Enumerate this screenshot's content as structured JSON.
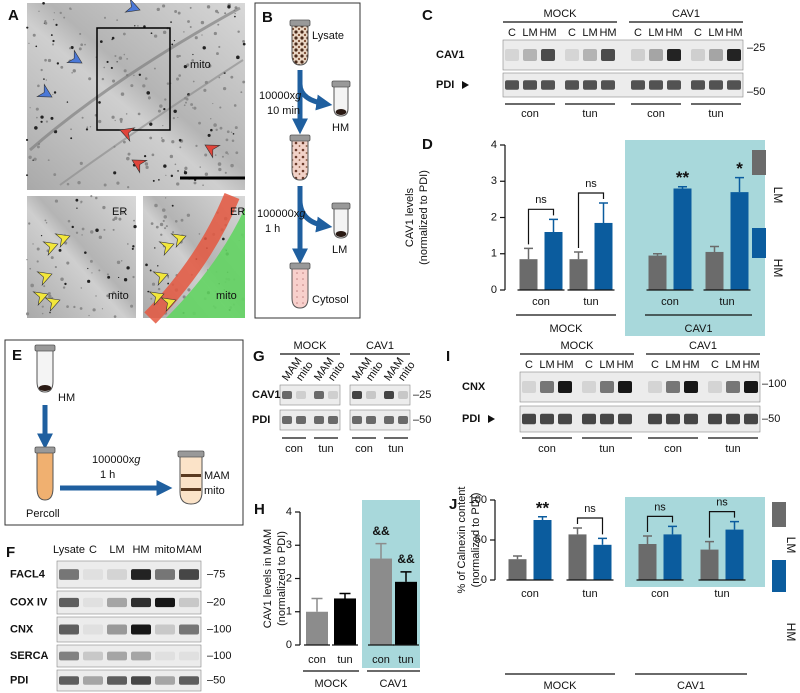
{
  "figure": {
    "a": {
      "label": "A",
      "labels": [
        "mito",
        "ER",
        "mito",
        "ER",
        "mito"
      ]
    },
    "b": {
      "label": "B",
      "tubes": [
        "Lysate",
        "HM",
        "LM",
        "Cytosol"
      ],
      "spins": [
        {
          "speed": "10000x",
          "g": "g",
          "time": "10 min"
        },
        {
          "speed": "100000x",
          "g": "g",
          "time": "1 h"
        }
      ]
    },
    "c": {
      "label": "C",
      "groups": [
        "MOCK",
        "CAV1"
      ],
      "lanes": [
        "C",
        "LM",
        "HM"
      ],
      "rows": [
        "CAV1",
        "PDI"
      ],
      "markers": [
        "–25",
        "–50"
      ],
      "conditions": [
        "con",
        "tun"
      ]
    },
    "e": {
      "label": "E",
      "tubes": [
        "HM",
        "Percoll",
        "MAM",
        "mito"
      ],
      "spin": {
        "speed": "100000x",
        "g": "g",
        "time": "1 h"
      }
    },
    "f": {
      "label": "F",
      "lanes": [
        "Lysate",
        "C",
        "LM",
        "HM",
        "mito",
        "MAM"
      ],
      "rows": [
        "FACL4",
        "COX IV",
        "CNX",
        "SERCA",
        "PDI"
      ],
      "markers": [
        "–75",
        "–20",
        "–100",
        "–100",
        "–50"
      ]
    },
    "g": {
      "label": "G",
      "groups": [
        "MOCK",
        "CAV1"
      ],
      "lanes": [
        "MAM",
        "mito"
      ],
      "rows": [
        "CAV1",
        "PDI"
      ],
      "markers": [
        "–25",
        "–50"
      ],
      "conditions": [
        "con",
        "tun"
      ]
    },
    "i": {
      "label": "I",
      "groups": [
        "MOCK",
        "CAV1"
      ],
      "lanes": [
        "C",
        "LM",
        "HM"
      ],
      "rows": [
        "CNX",
        "PDI"
      ],
      "markers": [
        "–100",
        "–50"
      ],
      "conditions": [
        "con",
        "tun"
      ]
    }
  },
  "chart_data": [
    {
      "label": "D",
      "type": "bar",
      "y_label": [
        "CAV1 levels",
        "(normalized to PDI)"
      ],
      "categories": [
        "con",
        "tun",
        "con",
        "tun"
      ],
      "groups": [
        "MOCK",
        "CAV1"
      ],
      "series": [
        {
          "name": "LM",
          "color": "#6b6b6b",
          "values": [
            0.85,
            0.85,
            0.95,
            1.05
          ],
          "errors": [
            0.3,
            0.2,
            0.05,
            0.15
          ]
        },
        {
          "name": "HM",
          "color": "#0b5c9e",
          "values": [
            1.6,
            1.85,
            2.8,
            2.7
          ],
          "errors": [
            0.35,
            0.55,
            0.05,
            0.4
          ]
        }
      ],
      "annotations": [
        {
          "text": "ns",
          "bracket": true
        },
        {
          "text": "ns",
          "bracket": true
        },
        {
          "text": "**",
          "bracket": false
        },
        {
          "text": "*",
          "bracket": false
        }
      ],
      "ylim": [
        0,
        4
      ],
      "yticks": [
        0,
        1,
        2,
        3,
        4
      ],
      "legend": "right",
      "highlight_group": 1,
      "highlight_color": "#a8d8db"
    },
    {
      "label": "H",
      "type": "bar",
      "y_label": [
        "CAV1 levels in MAM",
        "(normalized to PDI)"
      ],
      "categories": [
        "con",
        "tun",
        "con",
        "tun"
      ],
      "groups": [
        "MOCK",
        "CAV1"
      ],
      "values": [
        1.0,
        1.4,
        2.6,
        1.9
      ],
      "errors": [
        0.4,
        0.15,
        0.45,
        0.3
      ],
      "colors": [
        "#8c8c8c",
        "#000000",
        "#8c8c8c",
        "#000000"
      ],
      "annotations": [
        null,
        null,
        "&&",
        "&&"
      ],
      "ylim": [
        0,
        4
      ],
      "yticks": [
        0,
        1,
        2,
        3,
        4
      ],
      "highlight_group": 1,
      "highlight_color": "#a8d8db"
    },
    {
      "label": "J",
      "type": "bar",
      "y_label": [
        "% of Calnexin content",
        "(normalized to PDI)"
      ],
      "categories": [
        "con",
        "tun",
        "con",
        "tun"
      ],
      "groups": [
        "MOCK",
        "CAV1"
      ],
      "series": [
        {
          "name": "LM",
          "color": "#6b6b6b",
          "values": [
            26,
            57,
            45,
            38
          ],
          "errors": [
            4,
            8,
            10,
            10
          ]
        },
        {
          "name": "HM",
          "color": "#0b5c9e",
          "values": [
            75,
            44,
            57,
            63
          ],
          "errors": [
            4,
            8,
            10,
            10
          ]
        }
      ],
      "annotations": [
        {
          "text": "**",
          "bracket": false
        },
        {
          "text": "ns",
          "bracket": true
        },
        {
          "text": "ns",
          "bracket": true
        },
        {
          "text": "ns",
          "bracket": true
        }
      ],
      "ylim": [
        0,
        100
      ],
      "yticks": [
        0,
        50,
        100
      ],
      "legend": "right",
      "highlight_group": 1,
      "highlight_color": "#a8d8db"
    }
  ]
}
